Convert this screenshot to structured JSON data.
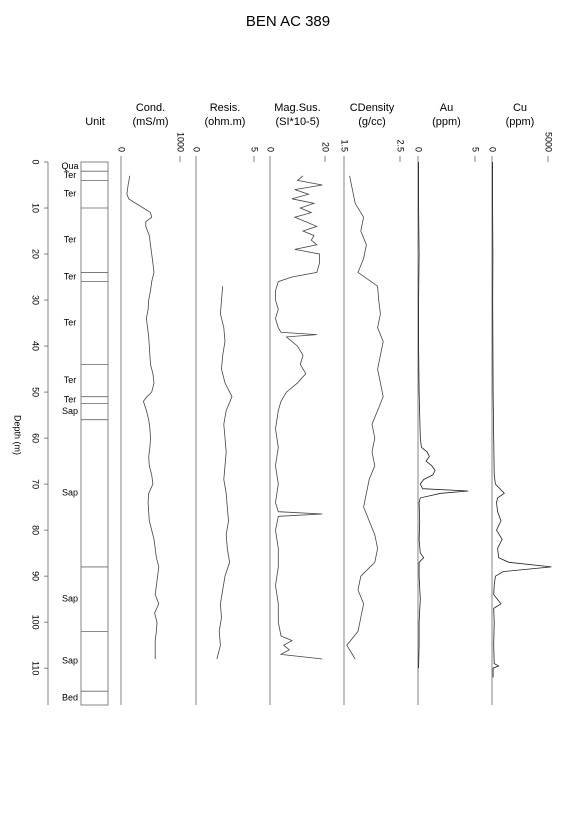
{
  "title": "BEN AC 389",
  "depth_axis": {
    "label": "Depth (m)",
    "lim": [
      0,
      118
    ],
    "ticks": [
      0,
      10,
      20,
      30,
      40,
      50,
      60,
      70,
      80,
      90,
      100,
      110
    ]
  },
  "unit_column": {
    "header": "Unit",
    "units": [
      {
        "label": "Qua",
        "top": 0,
        "bottom": 2
      },
      {
        "label": "Ter",
        "top": 2,
        "bottom": 4
      },
      {
        "label": "Ter",
        "top": 4,
        "bottom": 10
      },
      {
        "label": "Ter",
        "top": 10,
        "bottom": 24
      },
      {
        "label": "Ter",
        "top": 24,
        "bottom": 26
      },
      {
        "label": "Ter",
        "top": 26,
        "bottom": 44
      },
      {
        "label": "Ter",
        "top": 44,
        "bottom": 51
      },
      {
        "label": "Ter",
        "top": 51,
        "bottom": 52.5
      },
      {
        "label": "Sap",
        "top": 52.5,
        "bottom": 56
      },
      {
        "label": "Sap",
        "top": 56,
        "bottom": 88
      },
      {
        "label": "Sap",
        "top": 88,
        "bottom": 102
      },
      {
        "label": "Sap",
        "top": 102,
        "bottom": 115
      },
      {
        "label": "Bed",
        "top": 115,
        "bottom": 118
      }
    ]
  },
  "chart_data": [
    {
      "type": "line",
      "title": "Cond.",
      "subtitle": "(mS/m)",
      "xlim": [
        0,
        1000
      ],
      "xticks": [
        0,
        1000
      ],
      "color": "#444",
      "depth": [
        3,
        5,
        7,
        8,
        9,
        10,
        11,
        12,
        13,
        14,
        16,
        18,
        20,
        22,
        24,
        26,
        28,
        30,
        32,
        34,
        36,
        38,
        40,
        42,
        44,
        46,
        48,
        50,
        51,
        52,
        54,
        56,
        58,
        60,
        62,
        64,
        66,
        68,
        70,
        72,
        74,
        76,
        78,
        80,
        82,
        84,
        86,
        88,
        90,
        92,
        94,
        96,
        98,
        100,
        102,
        104,
        106,
        108
      ],
      "values": [
        150,
        120,
        100,
        130,
        250,
        380,
        500,
        520,
        420,
        420,
        480,
        500,
        520,
        540,
        560,
        520,
        500,
        470,
        460,
        430,
        450,
        470,
        480,
        490,
        500,
        540,
        560,
        520,
        440,
        380,
        430,
        470,
        490,
        500,
        490,
        470,
        480,
        520,
        540,
        470,
        460,
        470,
        480,
        520,
        560,
        580,
        600,
        640,
        620,
        600,
        580,
        640,
        570,
        610,
        600,
        580,
        580,
        580
      ]
    },
    {
      "type": "line",
      "title": "Resis.",
      "subtitle": "(ohm.m)",
      "xlim": [
        0,
        5
      ],
      "xticks": [
        0,
        5
      ],
      "color": "#444",
      "depth": [
        27,
        30,
        33,
        36,
        39,
        42,
        45,
        48,
        51,
        54,
        57,
        60,
        63,
        66,
        69,
        72,
        75,
        78,
        81,
        84,
        87,
        90,
        93,
        96,
        99,
        102,
        105,
        108
      ],
      "values": [
        2.3,
        2.2,
        2.1,
        2.4,
        2.5,
        2.3,
        2.2,
        2.5,
        3.1,
        2.6,
        2.4,
        2.5,
        2.6,
        2.5,
        2.4,
        2.6,
        2.7,
        2.8,
        2.6,
        2.7,
        2.9,
        2.5,
        2.3,
        2.1,
        2.2,
        2.0,
        2.1,
        1.8
      ]
    },
    {
      "type": "line",
      "title": "Mag.Sus.",
      "subtitle": "(SI*10-5)",
      "xlim": [
        0,
        20
      ],
      "xticks": [
        0,
        20
      ],
      "color": "#444",
      "depth": [
        3,
        4,
        5,
        6,
        7,
        8,
        9,
        10,
        11,
        12,
        13,
        14,
        15,
        16,
        17,
        18,
        19,
        20,
        22,
        24,
        25,
        26,
        28,
        30,
        32,
        34,
        36,
        37,
        37.5,
        38,
        40,
        42,
        44,
        46,
        48,
        50,
        52,
        54,
        58,
        62,
        66,
        70,
        74,
        76,
        76.5,
        77,
        80,
        84,
        88,
        92,
        96,
        100,
        103,
        104,
        105,
        106,
        107,
        108
      ],
      "values": [
        12,
        10,
        19,
        9,
        14,
        8,
        16,
        11,
        15,
        9,
        13,
        17,
        12,
        16,
        15,
        17,
        9,
        18,
        18,
        17,
        8,
        3,
        2,
        2,
        3,
        2,
        3,
        4,
        17,
        6,
        10,
        12,
        11,
        13,
        10,
        6,
        4,
        3,
        2,
        3,
        2,
        3,
        2,
        3,
        19,
        3,
        2,
        3,
        3,
        2,
        3,
        3,
        4,
        8,
        5,
        7,
        4,
        19
      ]
    },
    {
      "type": "line",
      "title": "CDensity",
      "subtitle": "(g/cc)",
      "xlim": [
        1.5,
        2.5
      ],
      "xticks": [
        1.5,
        2.5
      ],
      "color": "#444",
      "depth": [
        3,
        6,
        9,
        12,
        15,
        18,
        21,
        24,
        27,
        30,
        33,
        36,
        39,
        42,
        45,
        48,
        51,
        54,
        57,
        60,
        63,
        66,
        69,
        72,
        75,
        78,
        81,
        84,
        87,
        90,
        93,
        96,
        99,
        102,
        105,
        108
      ],
      "values": [
        1.6,
        1.65,
        1.7,
        1.85,
        1.8,
        1.9,
        1.85,
        1.75,
        2.1,
        2.12,
        2.15,
        2.1,
        2.2,
        2.15,
        2.1,
        2.15,
        2.2,
        2.1,
        2.0,
        2.05,
        2.0,
        2.05,
        1.95,
        1.9,
        1.85,
        1.95,
        2.05,
        2.1,
        2.05,
        1.8,
        1.75,
        1.85,
        1.8,
        1.75,
        1.55,
        1.7
      ]
    },
    {
      "type": "line",
      "title": "Au",
      "subtitle": "(ppm)",
      "xlim": [
        0,
        5
      ],
      "xticks": [
        0,
        5
      ],
      "color": "#222",
      "depth": [
        0,
        10,
        20,
        30,
        40,
        50,
        55,
        60,
        62,
        63,
        64,
        65,
        66,
        67,
        68,
        69,
        70,
        71,
        71.5,
        72,
        73,
        74,
        78,
        82,
        85,
        86,
        87,
        90,
        95,
        100,
        105,
        110
      ],
      "values": [
        0.05,
        0.05,
        0.1,
        0.05,
        0.05,
        0.1,
        0.15,
        0.2,
        0.3,
        0.8,
        1.0,
        0.7,
        1.2,
        1.5,
        1.3,
        0.5,
        0.2,
        0.4,
        4.4,
        2.0,
        0.2,
        0.1,
        0.15,
        0.1,
        0.2,
        0.5,
        0.1,
        0.1,
        0.2,
        0.1,
        0.1,
        0.05
      ]
    },
    {
      "type": "line",
      "title": "Cu",
      "subtitle": "(ppm)",
      "xlim": [
        0,
        5000
      ],
      "xticks": [
        0,
        5000
      ],
      "color": "#222",
      "depth": [
        0,
        10,
        20,
        30,
        40,
        50,
        60,
        68,
        70,
        72,
        73,
        74,
        76,
        78,
        80,
        82,
        84,
        86,
        87,
        88,
        89,
        90,
        92,
        94,
        96,
        97,
        100,
        105,
        109,
        109.5,
        110,
        112
      ],
      "values": [
        50,
        50,
        80,
        60,
        80,
        100,
        150,
        200,
        300,
        1100,
        500,
        400,
        500,
        800,
        400,
        900,
        500,
        600,
        1500,
        5300,
        1000,
        300,
        200,
        150,
        800,
        150,
        200,
        150,
        200,
        600,
        100,
        100
      ]
    }
  ]
}
